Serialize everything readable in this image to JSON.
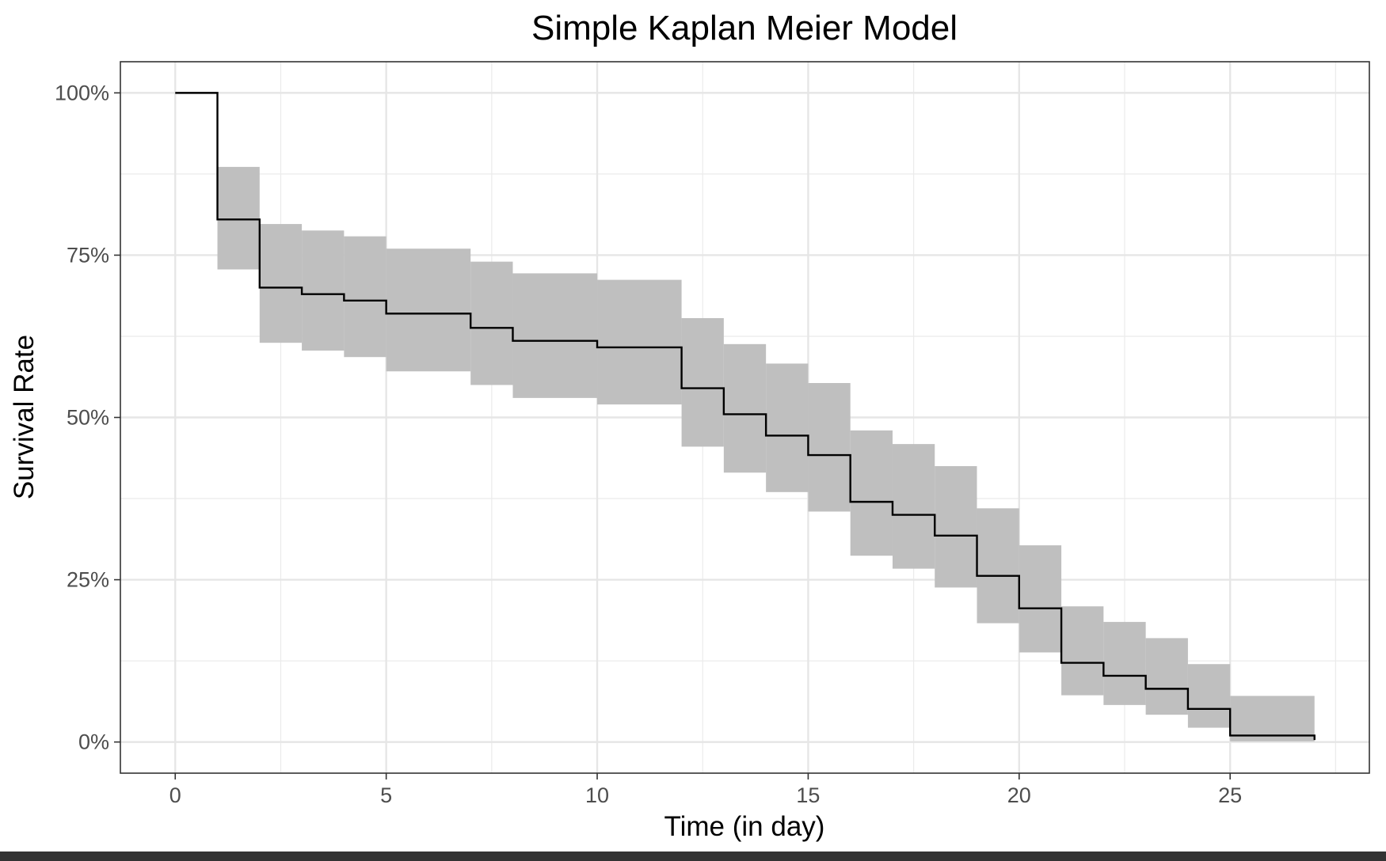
{
  "chart_data": {
    "type": "line",
    "title": "Simple Kaplan Meier Model",
    "xlabel": "Time (in day)",
    "ylabel": "Survival Rate",
    "xlim": [
      -1.3,
      28.3
    ],
    "ylim": [
      -0.048,
      1.048
    ],
    "x_ticks": [
      0,
      5,
      10,
      15,
      20,
      25
    ],
    "x_tick_labels": [
      "0",
      "5",
      "10",
      "15",
      "20",
      "25"
    ],
    "y_ticks": [
      0,
      0.25,
      0.5,
      0.75,
      1.0
    ],
    "y_tick_labels": [
      "0%",
      "25%",
      "50%",
      "75%",
      "100%"
    ],
    "grid": true,
    "legend": "none",
    "series": [
      {
        "step": "post",
        "color": "#000000",
        "band_color": "#bfbfbf",
        "x": [
          0,
          1,
          2,
          3,
          4,
          5,
          7,
          8,
          10,
          12,
          13,
          14,
          15,
          16,
          17,
          18,
          19,
          20,
          21,
          22,
          23,
          24,
          25,
          27
        ],
        "y": [
          1.0,
          0.805,
          0.7,
          0.69,
          0.68,
          0.66,
          0.638,
          0.618,
          0.608,
          0.545,
          0.505,
          0.472,
          0.442,
          0.37,
          0.35,
          0.318,
          0.256,
          0.206,
          0.122,
          0.102,
          0.082,
          0.051,
          0.01,
          0.003
        ],
        "lower": [
          1.0,
          0.728,
          0.615,
          0.603,
          0.593,
          0.571,
          0.55,
          0.53,
          0.52,
          0.455,
          0.415,
          0.385,
          0.355,
          0.287,
          0.267,
          0.238,
          0.183,
          0.138,
          0.072,
          0.057,
          0.042,
          0.022,
          0.001,
          0.001
        ],
        "upper": [
          1.0,
          0.886,
          0.798,
          0.788,
          0.779,
          0.76,
          0.74,
          0.722,
          0.712,
          0.653,
          0.613,
          0.583,
          0.553,
          0.48,
          0.459,
          0.425,
          0.36,
          0.303,
          0.209,
          0.185,
          0.16,
          0.12,
          0.071,
          0.071
        ]
      }
    ]
  }
}
